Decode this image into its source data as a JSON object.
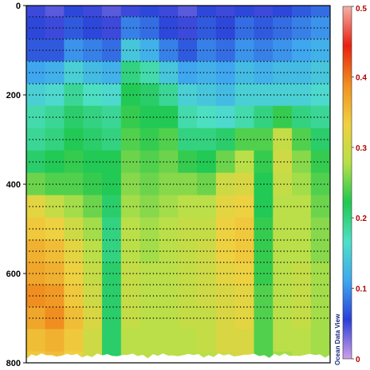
{
  "chart_data": {
    "type": "heatmap",
    "title": "",
    "xlabel": "",
    "ylabel": "",
    "y_axis": {
      "ticks": [
        0,
        200,
        400,
        600,
        800
      ],
      "range": [
        0,
        800
      ],
      "inverted": true
    },
    "colorbar": {
      "ticks": [
        0,
        0.1,
        0.2,
        0.3,
        0.4,
        0.5
      ],
      "range": [
        0,
        0.5
      ],
      "colors": [
        "#d0a0e8",
        "#2b3fd8",
        "#3fa8f0",
        "#4fe0c8",
        "#20c850",
        "#b8e048",
        "#f0d040",
        "#f09020",
        "#e82010",
        "#f6b0a8"
      ]
    },
    "columns": 16,
    "depth_rows": [
      0,
      50,
      100,
      150,
      200,
      250,
      300,
      350,
      400,
      450,
      500,
      550,
      600,
      650,
      700,
      750,
      800
    ],
    "values": [
      [
        0.05,
        0.04,
        0.06,
        0.05,
        0.04,
        0.05,
        0.06,
        0.05,
        0.04,
        0.06,
        0.05,
        0.06,
        0.05,
        0.06,
        0.07,
        0.08
      ],
      [
        0.06,
        0.05,
        0.07,
        0.06,
        0.05,
        0.09,
        0.08,
        0.06,
        0.05,
        0.07,
        0.06,
        0.08,
        0.07,
        0.08,
        0.09,
        0.1
      ],
      [
        0.07,
        0.07,
        0.1,
        0.09,
        0.08,
        0.14,
        0.12,
        0.09,
        0.07,
        0.09,
        0.08,
        0.1,
        0.09,
        0.1,
        0.11,
        0.12
      ],
      [
        0.11,
        0.12,
        0.15,
        0.13,
        0.12,
        0.2,
        0.18,
        0.14,
        0.11,
        0.12,
        0.11,
        0.13,
        0.12,
        0.13,
        0.13,
        0.14
      ],
      [
        0.15,
        0.16,
        0.19,
        0.17,
        0.16,
        0.22,
        0.21,
        0.19,
        0.15,
        0.14,
        0.13,
        0.15,
        0.15,
        0.15,
        0.15,
        0.16
      ],
      [
        0.18,
        0.19,
        0.21,
        0.2,
        0.19,
        0.23,
        0.22,
        0.22,
        0.18,
        0.17,
        0.16,
        0.18,
        0.2,
        0.23,
        0.2,
        0.19
      ],
      [
        0.19,
        0.2,
        0.22,
        0.21,
        0.2,
        0.24,
        0.23,
        0.24,
        0.2,
        0.2,
        0.21,
        0.24,
        0.24,
        0.29,
        0.24,
        0.21
      ],
      [
        0.21,
        0.22,
        0.23,
        0.22,
        0.22,
        0.25,
        0.24,
        0.25,
        0.23,
        0.22,
        0.25,
        0.28,
        0.23,
        0.3,
        0.26,
        0.23
      ],
      [
        0.25,
        0.24,
        0.24,
        0.23,
        0.22,
        0.26,
        0.25,
        0.26,
        0.26,
        0.25,
        0.3,
        0.31,
        0.22,
        0.29,
        0.27,
        0.24
      ],
      [
        0.32,
        0.29,
        0.27,
        0.25,
        0.21,
        0.27,
        0.26,
        0.27,
        0.28,
        0.28,
        0.32,
        0.33,
        0.22,
        0.28,
        0.28,
        0.25
      ],
      [
        0.34,
        0.33,
        0.3,
        0.27,
        0.2,
        0.28,
        0.27,
        0.28,
        0.29,
        0.29,
        0.33,
        0.34,
        0.23,
        0.28,
        0.28,
        0.26
      ],
      [
        0.36,
        0.35,
        0.32,
        0.28,
        0.2,
        0.28,
        0.27,
        0.28,
        0.29,
        0.3,
        0.33,
        0.34,
        0.23,
        0.28,
        0.28,
        0.26
      ],
      [
        0.37,
        0.36,
        0.33,
        0.29,
        0.21,
        0.29,
        0.28,
        0.28,
        0.29,
        0.3,
        0.32,
        0.33,
        0.23,
        0.28,
        0.29,
        0.27
      ],
      [
        0.39,
        0.38,
        0.34,
        0.3,
        0.21,
        0.29,
        0.28,
        0.28,
        0.29,
        0.3,
        0.31,
        0.32,
        0.24,
        0.28,
        0.29,
        0.27
      ],
      [
        0.37,
        0.39,
        0.35,
        0.31,
        0.21,
        0.29,
        0.28,
        0.28,
        0.29,
        0.29,
        0.31,
        0.32,
        0.24,
        0.28,
        0.29,
        0.27
      ],
      [
        0.35,
        0.36,
        0.34,
        0.3,
        0.21,
        0.28,
        0.28,
        0.28,
        0.28,
        0.29,
        0.31,
        0.31,
        0.24,
        0.28,
        0.28,
        0.27
      ],
      [
        0.34,
        0.35,
        0.33,
        0.3,
        0.21,
        0.28,
        0.28,
        0.28,
        0.28,
        0.28,
        0.3,
        0.31,
        0.24,
        0.27,
        0.28,
        0.27
      ]
    ],
    "sample_rows": [
      25,
      50,
      75,
      100,
      125,
      150,
      175,
      200,
      250,
      300,
      350,
      400,
      450,
      500,
      525,
      550,
      575,
      600,
      625,
      650,
      675,
      700
    ],
    "credit": "Ocean Data View",
    "grid": false,
    "legend": "right"
  }
}
